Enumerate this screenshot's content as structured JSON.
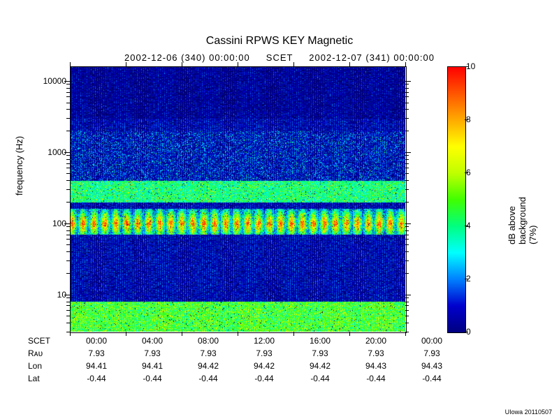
{
  "title": "Cassini RPWS KEY Magnetic",
  "subtitle_left": "2002-12-06 (340) 00:00:00",
  "subtitle_mid": "SCET",
  "subtitle_right": "2002-12-07 (341) 00:00:00",
  "ylabel": "frequency (Hz)",
  "cb_label": "dB above background (7%)",
  "footer": "UIowa 20110507",
  "chart": {
    "type": "spectrogram",
    "ylim": [
      3,
      16000
    ],
    "yscale": "log",
    "yticks_major": [
      10,
      100,
      1000,
      10000
    ],
    "ytick_labels": [
      "10",
      "100",
      "1000",
      "10000"
    ],
    "cb_range": [
      0,
      10
    ],
    "cb_ticks": [
      0,
      2,
      4,
      6,
      8,
      10
    ],
    "background_color": "#000080",
    "colors": {
      "low": "#000080",
      "mid_low": "#0080ff",
      "mid": "#00ffff",
      "mid_high": "#80ff00",
      "high": "#ffff00",
      "very_high": "#ff8000",
      "max": "#ff0000"
    },
    "bright_band_freq": 100,
    "band_intensity": 9,
    "noise_floor_freq": 5,
    "aspect_width": 480,
    "aspect_height": 380
  },
  "xaxis": {
    "rows": [
      {
        "label": "SCET",
        "cells": [
          "00:00",
          "04:00",
          "08:00",
          "12:00",
          "16:00",
          "20:00",
          "00:00"
        ]
      },
      {
        "label": "Rᴀᴜ",
        "cells": [
          "7.93",
          "7.93",
          "7.93",
          "7.93",
          "7.93",
          "7.93",
          "7.93"
        ]
      },
      {
        "label": "Lon",
        "cells": [
          "94.41",
          "94.41",
          "94.42",
          "94.42",
          "94.42",
          "94.43",
          "94.43"
        ]
      },
      {
        "label": "Lat",
        "cells": [
          "-0.44",
          "-0.44",
          "-0.44",
          "-0.44",
          "-0.44",
          "-0.44",
          "-0.44"
        ]
      }
    ]
  }
}
